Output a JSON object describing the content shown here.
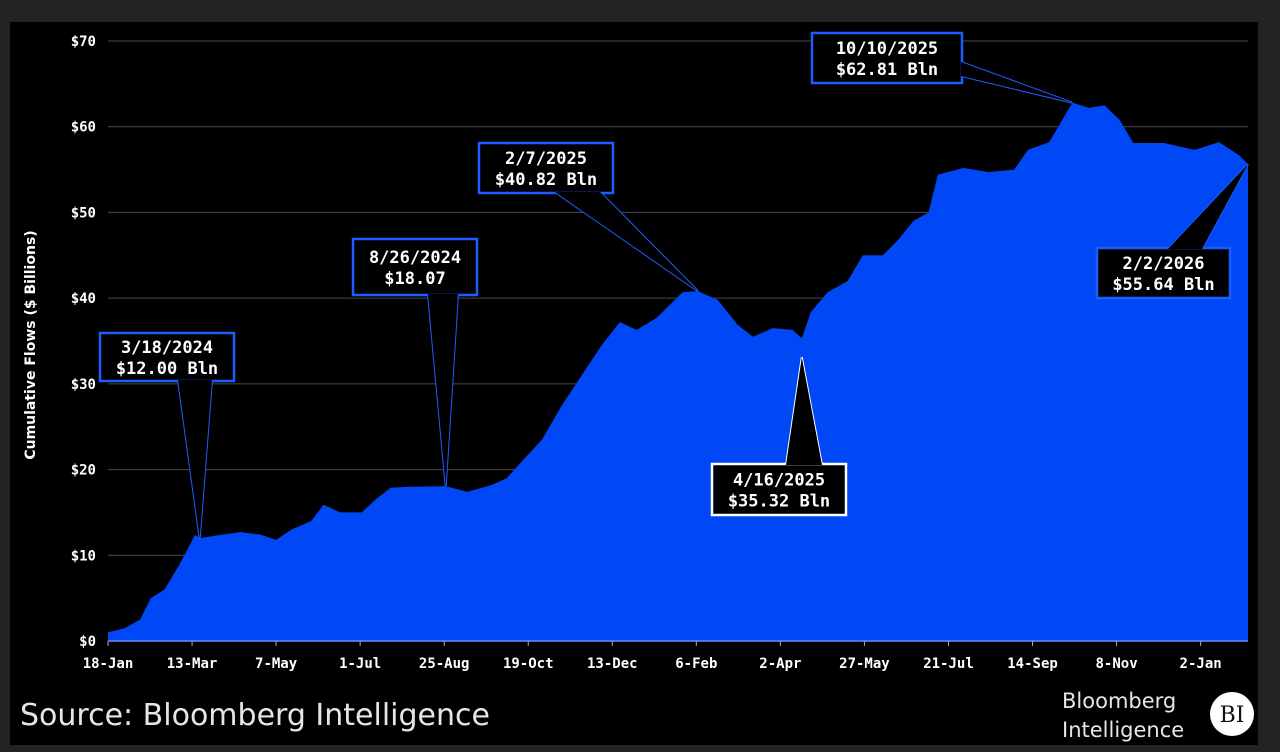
{
  "chart_data": {
    "type": "area",
    "title": "",
    "xlabel": "",
    "ylabel": "Cumulative Flows ($ Billions)",
    "ylim": [
      0,
      70
    ],
    "xlim": [
      "2024-01-18",
      "2026-02-02"
    ],
    "grid": true,
    "legend": "none",
    "fill_color": "#0047f5",
    "y_ticks": [
      "$0",
      "$10",
      "$20",
      "$30",
      "$40",
      "$50",
      "$60",
      "$70"
    ],
    "y_tick_values": [
      0,
      10,
      20,
      30,
      40,
      50,
      60,
      70
    ],
    "x_ticks": [
      {
        "date": "2024-01-18",
        "label": "18-Jan"
      },
      {
        "date": "2024-03-13",
        "label": "13-Mar"
      },
      {
        "date": "2024-05-07",
        "label": "7-May"
      },
      {
        "date": "2024-07-01",
        "label": "1-Jul"
      },
      {
        "date": "2024-08-25",
        "label": "25-Aug"
      },
      {
        "date": "2024-10-19",
        "label": "19-Oct"
      },
      {
        "date": "2024-12-13",
        "label": "13-Dec"
      },
      {
        "date": "2025-02-06",
        "label": "6-Feb"
      },
      {
        "date": "2025-04-02",
        "label": "2-Apr"
      },
      {
        "date": "2025-05-27",
        "label": "27-May"
      },
      {
        "date": "2025-07-21",
        "label": "21-Jul"
      },
      {
        "date": "2025-09-14",
        "label": "14-Sep"
      },
      {
        "date": "2025-11-08",
        "label": "8-Nov"
      },
      {
        "date": "2026-01-02",
        "label": "2-Jan"
      }
    ],
    "series": [
      {
        "x": [
          "2024-01-18",
          "2024-01-29",
          "2024-02-08",
          "2024-02-15",
          "2024-02-24",
          "2024-03-05",
          "2024-03-15",
          "2024-03-18",
          "2024-04-01",
          "2024-04-14",
          "2024-04-27",
          "2024-05-07",
          "2024-05-17",
          "2024-05-30",
          "2024-06-07",
          "2024-06-18",
          "2024-07-02",
          "2024-07-11",
          "2024-07-21",
          "2024-08-03",
          "2024-08-26",
          "2024-09-09",
          "2024-09-25",
          "2024-10-05",
          "2024-10-15",
          "2024-10-28",
          "2024-11-10",
          "2024-11-23",
          "2024-12-06",
          "2024-12-18",
          "2024-12-29",
          "2025-01-11",
          "2025-01-28",
          "2025-02-07",
          "2025-02-20",
          "2025-03-05",
          "2025-03-15",
          "2025-03-28",
          "2025-04-10",
          "2025-04-16",
          "2025-04-22",
          "2025-05-03",
          "2025-05-16",
          "2025-05-26",
          "2025-06-08",
          "2025-06-18",
          "2025-06-28",
          "2025-07-08",
          "2025-07-14",
          "2025-07-31",
          "2025-08-16",
          "2025-09-02",
          "2025-09-11",
          "2025-09-25",
          "2025-10-10",
          "2025-10-21",
          "2025-10-31",
          "2025-11-10",
          "2025-11-19",
          "2025-12-09",
          "2025-12-29",
          "2026-01-14",
          "2026-01-27",
          "2026-02-02"
        ],
        "y": [
          1.0,
          1.5,
          2.5,
          5.0,
          6.0,
          9.0,
          12.4,
          12.0,
          12.4,
          12.7,
          12.4,
          11.8,
          13.0,
          14.0,
          15.9,
          15.0,
          15.0,
          16.5,
          17.9,
          18.0,
          18.07,
          17.4,
          18.2,
          19.0,
          21.0,
          23.5,
          27.5,
          31.0,
          34.5,
          37.2,
          36.3,
          37.7,
          40.7,
          40.82,
          39.8,
          36.9,
          35.5,
          36.5,
          36.3,
          35.32,
          38.4,
          40.7,
          42.0,
          45.0,
          45.0,
          46.8,
          49.0,
          50.0,
          54.4,
          55.2,
          54.7,
          55.0,
          57.3,
          58.2,
          62.81,
          62.2,
          62.5,
          60.8,
          58.1,
          58.1,
          57.3,
          58.2,
          56.7,
          55.64
        ]
      }
    ],
    "annotations": [
      {
        "date": "2024-03-18",
        "value": 12.0,
        "line1": "3/18/2024",
        "line2": "$12.00 Bln",
        "style": "blue"
      },
      {
        "date": "2024-08-26",
        "value": 18.07,
        "line1": "8/26/2024",
        "line2": "$18.07",
        "style": "blue"
      },
      {
        "date": "2025-02-07",
        "value": 40.82,
        "line1": "2/7/2025",
        "line2": "$40.82 Bln",
        "style": "blue"
      },
      {
        "date": "2025-04-16",
        "value": 35.32,
        "line1": "4/16/2025",
        "line2": "$35.32 Bln",
        "style": "white"
      },
      {
        "date": "2025-10-10",
        "value": 62.81,
        "line1": "10/10/2025",
        "line2": "$62.81 Bln",
        "style": "blue"
      },
      {
        "date": "2026-02-02",
        "value": 55.64,
        "line1": "2/2/2026",
        "line2": "$55.64 Bln",
        "style": "blue"
      }
    ]
  },
  "footer": {
    "source": "Source: Bloomberg Intelligence",
    "logo_line1": "Bloomberg",
    "logo_line2": "Intelligence",
    "logo_badge": "BI"
  }
}
